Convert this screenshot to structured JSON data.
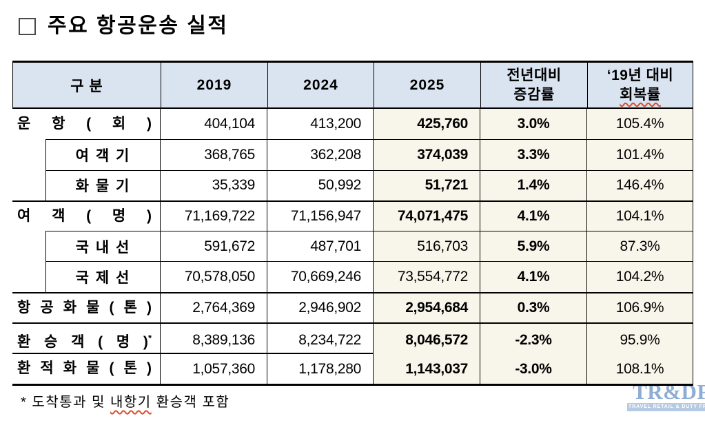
{
  "title": "주요 항공운송 실적",
  "colors": {
    "header_bg": "#dae3f0",
    "highlight_bg": "#f8f5ea",
    "border": "#000000",
    "logo_blue": "#8fadd4",
    "logo_bar_bg": "#b5cae3",
    "spellcheck_underline": "#d4502e"
  },
  "table": {
    "header": {
      "category": "구  분",
      "y2019": "2019",
      "y2024": "2024",
      "y2025": "2025",
      "yoy_line1": "전년대비",
      "yoy_line2": "증감률",
      "recovery_line1": "‘19년 대비",
      "recovery_line2": "회복률"
    },
    "rows": [
      {
        "label": "운 항 ( 회 )",
        "v2019": "404,104",
        "v2024": "413,200",
        "v2025": "425,760",
        "yoy": "3.0%",
        "recovery": "105.4%"
      },
      {
        "label": "여 객 기",
        "v2019": "368,765",
        "v2024": "362,208",
        "v2025": "374,039",
        "yoy": "3.3%",
        "recovery": "101.4%"
      },
      {
        "label": "화 물 기",
        "v2019": "35,339",
        "v2024": "50,992",
        "v2025": "51,721",
        "yoy": "1.4%",
        "recovery": "146.4%"
      },
      {
        "label": "여 객 ( 명 )",
        "v2019": "71,169,722",
        "v2024": "71,156,947",
        "v2025": "74,071,475",
        "yoy": "4.1%",
        "recovery": "104.1%"
      },
      {
        "label": "국 내 선",
        "v2019": "591,672",
        "v2024": "487,701",
        "v2025": "516,703",
        "yoy": "5.9%",
        "recovery": "87.3%"
      },
      {
        "label": "국 제 선",
        "v2019": "70,578,050",
        "v2024": "70,669,246",
        "v2025": "73,554,772",
        "yoy": "4.1%",
        "recovery": "104.2%"
      },
      {
        "label": "항 공 화 물 ( 톤 )",
        "v2019": "2,764,369",
        "v2024": "2,946,902",
        "v2025": "2,954,684",
        "yoy": "0.3%",
        "recovery": "106.9%"
      },
      {
        "label": "환 승 객 ( 명 )",
        "sup": "*",
        "v2019": "8,389,136",
        "v2024": "8,234,722",
        "v2025": "8,046,572",
        "yoy": "-2.3%",
        "recovery": "95.9%"
      },
      {
        "label": "환 적 화 물 ( 톤 )",
        "v2019": "1,057,360",
        "v2024": "1,178,280",
        "v2025": "1,143,037",
        "yoy": "-3.0%",
        "recovery": "108.1%"
      }
    ]
  },
  "footnote": {
    "pre": "* 도착통과 및 ",
    "marked": "내항기",
    "post": " 환승객 포함"
  },
  "logo": {
    "text": "TR&DF",
    "tagline": "TRAVEL RETAIL & DUTY FREE"
  }
}
